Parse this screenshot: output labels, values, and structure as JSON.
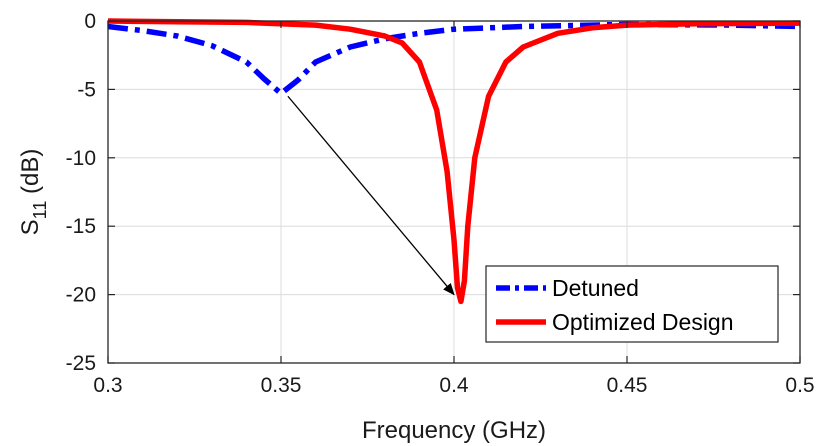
{
  "chart_data": {
    "type": "line",
    "xlabel": "Frequency (GHz)",
    "ylabel": {
      "base": "S",
      "sub": "11",
      "rest": " (dB)"
    },
    "xlim": [
      0.3,
      0.5
    ],
    "ylim": [
      -25,
      0
    ],
    "xticks": [
      0.3,
      0.35,
      0.4,
      0.45,
      0.5
    ],
    "yticks": [
      0,
      -5,
      -10,
      -15,
      -20,
      -25
    ],
    "xtick_labels": [
      "0.3",
      "0.35",
      "0.4",
      "0.45",
      "0.5"
    ],
    "ytick_labels": [
      "0",
      "-5",
      "-10",
      "-15",
      "-20",
      "-25"
    ],
    "grid": true,
    "legend_position": "bottom-right",
    "series": [
      {
        "name": "Detuned",
        "color": "#0000ff",
        "style": "dash-dot",
        "x": [
          0.3,
          0.31,
          0.32,
          0.33,
          0.34,
          0.345,
          0.35,
          0.355,
          0.36,
          0.37,
          0.38,
          0.39,
          0.4,
          0.42,
          0.45,
          0.48,
          0.5
        ],
        "y": [
          -0.4,
          -0.7,
          -1.1,
          -1.8,
          -3.0,
          -4.2,
          -5.3,
          -4.3,
          -3.0,
          -1.9,
          -1.3,
          -0.9,
          -0.6,
          -0.4,
          -0.25,
          -0.3,
          -0.4
        ]
      },
      {
        "name": "Optimized Design",
        "color": "#ff0000",
        "style": "solid",
        "x": [
          0.3,
          0.32,
          0.34,
          0.36,
          0.37,
          0.38,
          0.385,
          0.39,
          0.395,
          0.398,
          0.4,
          0.401,
          0.402,
          0.403,
          0.404,
          0.406,
          0.41,
          0.415,
          0.42,
          0.43,
          0.44,
          0.45,
          0.47,
          0.5
        ],
        "y": [
          0.0,
          -0.05,
          -0.1,
          -0.3,
          -0.6,
          -1.1,
          -1.6,
          -3.0,
          -6.5,
          -11.0,
          -16.0,
          -19.5,
          -20.5,
          -19.0,
          -15.0,
          -10.0,
          -5.5,
          -3.0,
          -1.9,
          -0.9,
          -0.5,
          -0.3,
          -0.2,
          -0.15
        ]
      }
    ],
    "annotation": {
      "type": "arrow",
      "from": [
        0.352,
        -5.5
      ],
      "to": [
        0.4,
        -20.0
      ]
    }
  }
}
